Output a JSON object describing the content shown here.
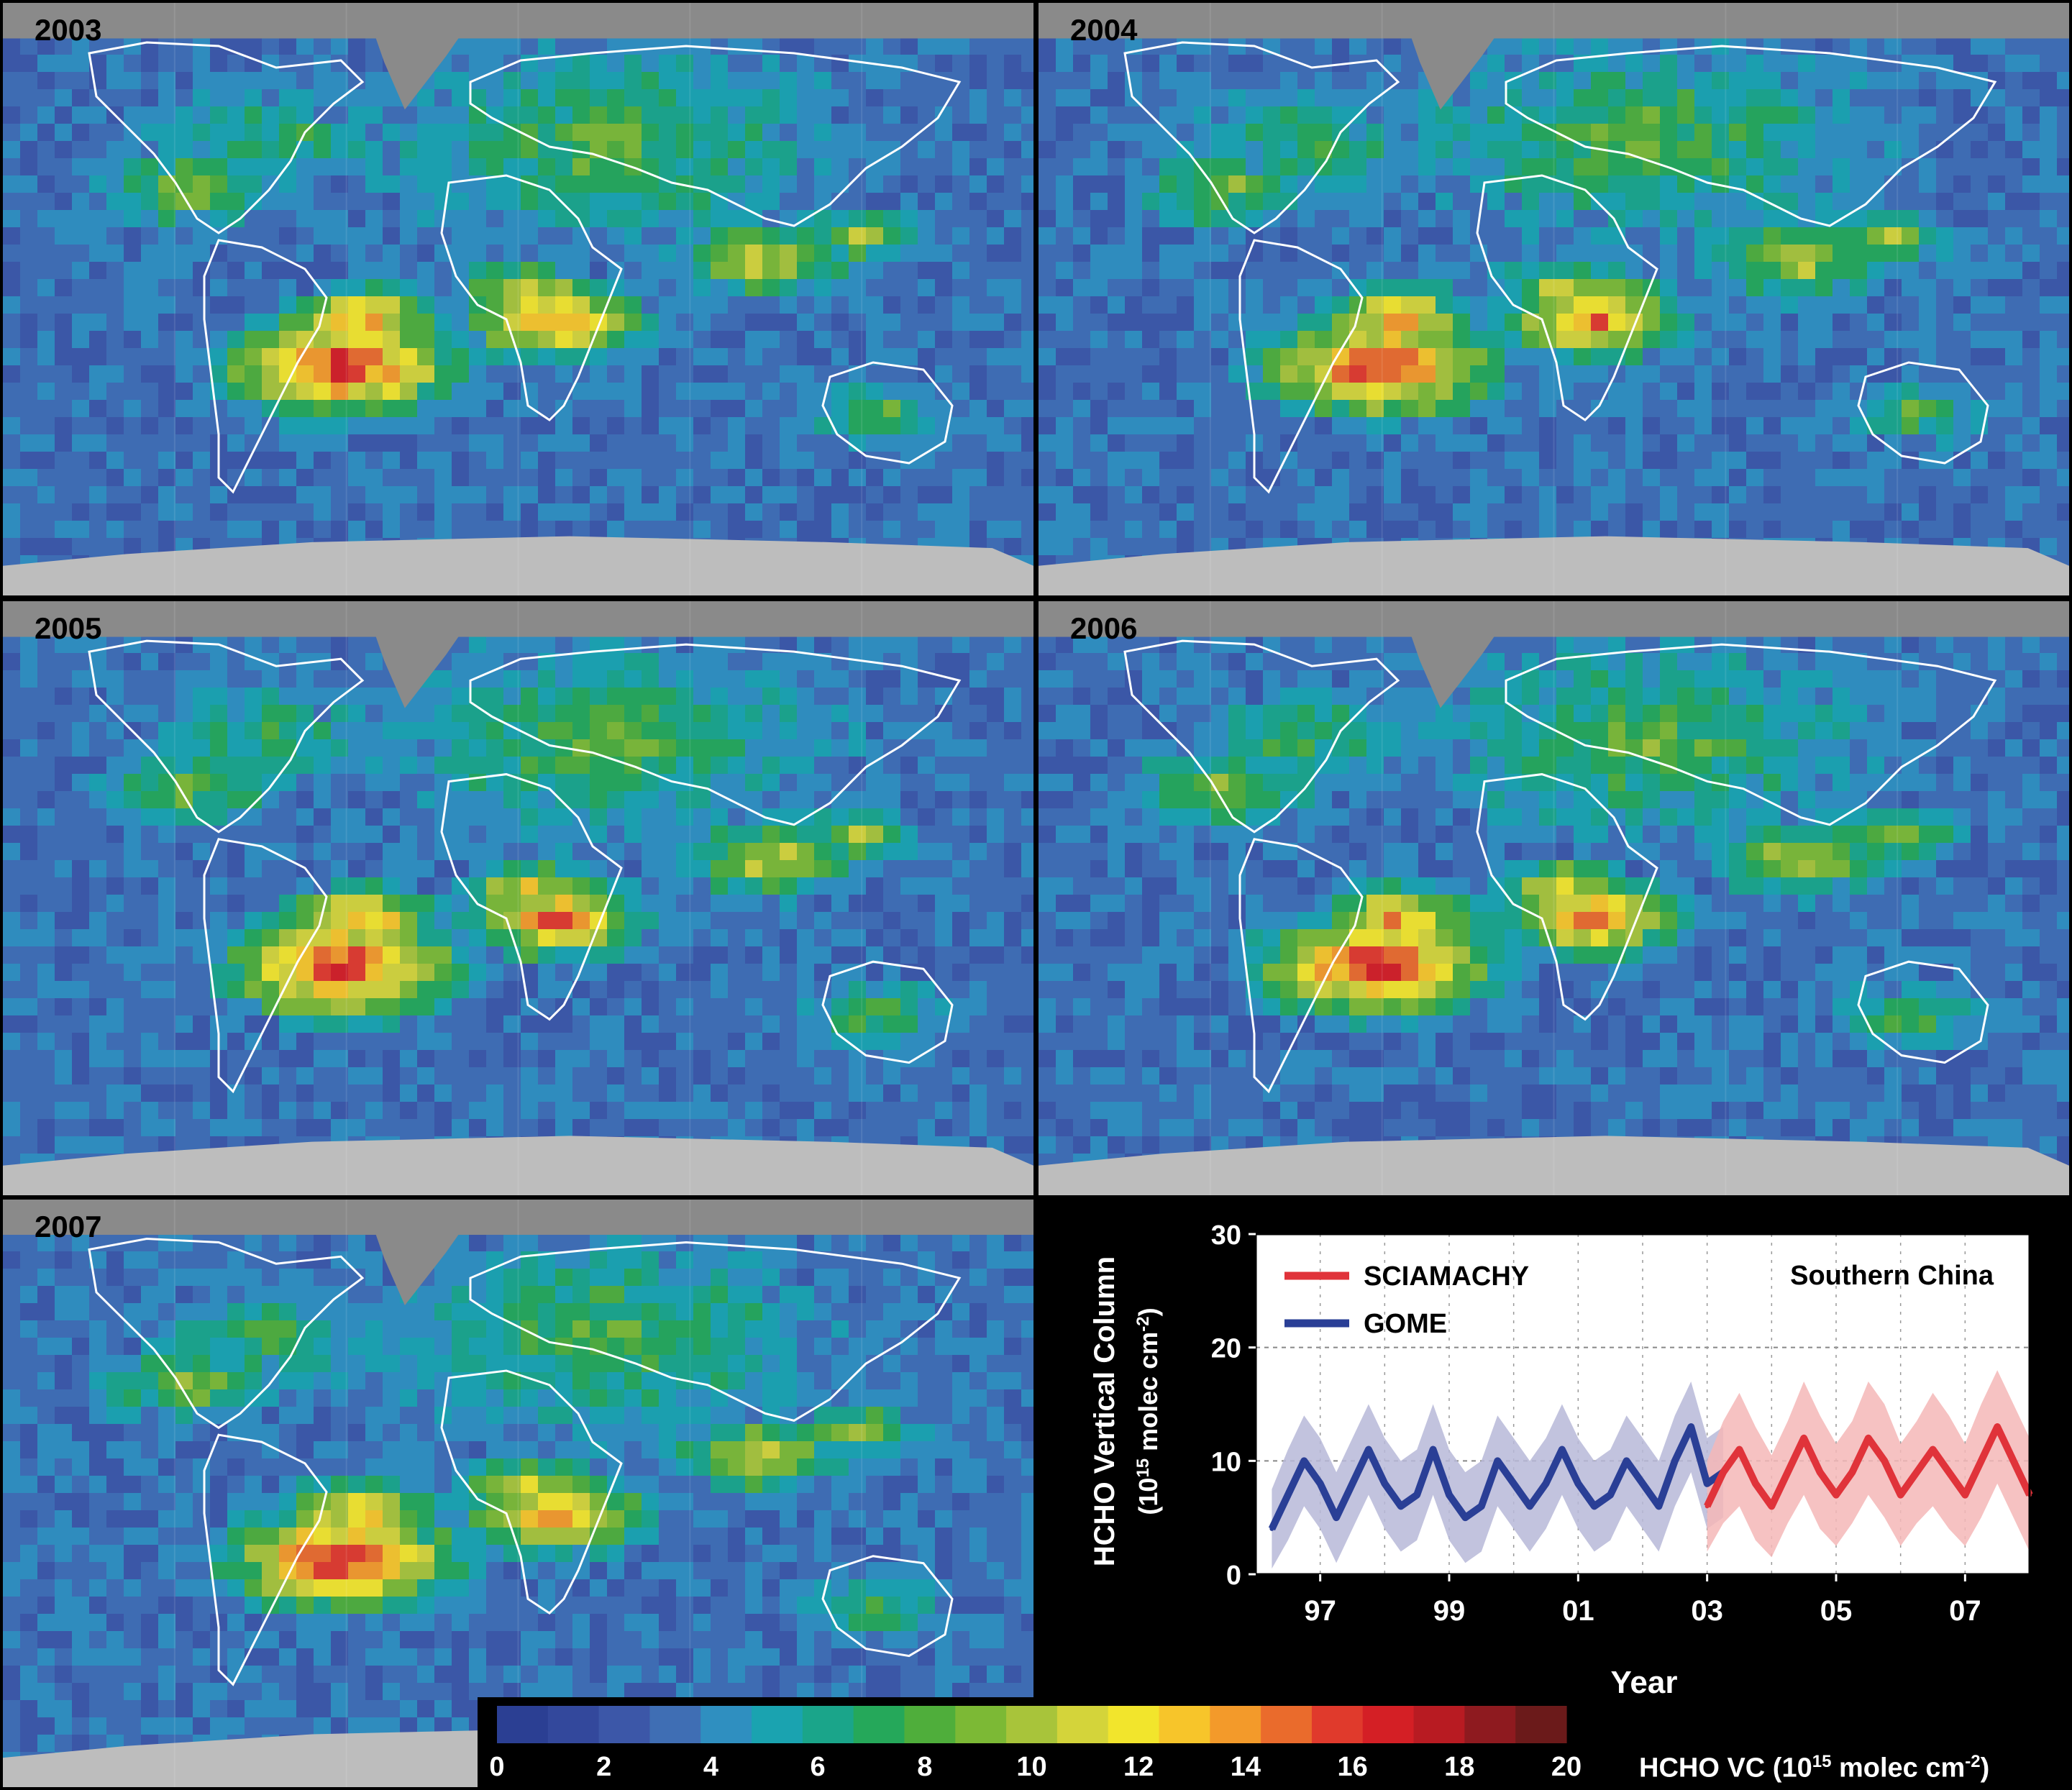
{
  "maps": [
    {
      "year": "2003"
    },
    {
      "year": "2004"
    },
    {
      "year": "2005"
    },
    {
      "year": "2006"
    },
    {
      "year": "2007"
    }
  ],
  "colors": {
    "land_gray": "#8a8a8a",
    "ice_gray": "#bdbdbd",
    "ocean_low": "#2f4f9e",
    "coast": "#ffffff"
  },
  "colorbar": {
    "ticks": [
      "0",
      "2",
      "4",
      "6",
      "8",
      "10",
      "12",
      "14",
      "16",
      "18",
      "20"
    ],
    "label": "HCHO VC (10",
    "label_sup": "15",
    "label_tail": " molec cm",
    "label_sup2": "-2",
    "label_end": ")",
    "stops": [
      "#2b3f93",
      "#33489c",
      "#3c57a8",
      "#3f6eb4",
      "#2f8fc0",
      "#1aa3b0",
      "#1aa58a",
      "#25a85a",
      "#4fae3b",
      "#7cb935",
      "#a8c43a",
      "#d4d43a",
      "#f2e52c",
      "#f7c52a",
      "#f39a2a",
      "#ea6b2c",
      "#e03a2c",
      "#d41f25",
      "#b81b22",
      "#8e1a1f",
      "#6b1a1a"
    ]
  },
  "chart_data": {
    "type": "line",
    "title": "Southern China",
    "xlabel": "Year",
    "ylabel": "HCHO Vertical Column",
    "ylabel2": "(10",
    "ylabel2_sup": "15",
    "ylabel2_tail": " molec cm",
    "ylabel2_sup2": "-2",
    "ylabel2_end": ")",
    "xlim": [
      1996.0,
      2008.0
    ],
    "ylim": [
      0,
      30
    ],
    "x_ticks": [
      {
        "value": 1997,
        "label": "97"
      },
      {
        "value": 1999,
        "label": "99"
      },
      {
        "value": 2001,
        "label": "01"
      },
      {
        "value": 2003,
        "label": "03"
      },
      {
        "value": 2005,
        "label": "05"
      },
      {
        "value": 2007,
        "label": "07"
      }
    ],
    "y_ticks": [
      "0",
      "10",
      "20",
      "30"
    ],
    "grid": true,
    "legend_position": "top-left",
    "series": [
      {
        "name": "GOME",
        "color": "#2a3f96",
        "band_color": "#b7b9d8",
        "x": [
          1996.25,
          1996.5,
          1996.75,
          1997.0,
          1997.25,
          1997.5,
          1997.75,
          1998.0,
          1998.25,
          1998.5,
          1998.75,
          1999.0,
          1999.25,
          1999.5,
          1999.75,
          2000.0,
          2000.25,
          2000.5,
          2000.75,
          2001.0,
          2001.25,
          2001.5,
          2001.75,
          2002.0,
          2002.25,
          2002.5,
          2002.75,
          2003.0,
          2003.25
        ],
        "values": [
          4,
          7,
          10,
          8,
          5,
          8,
          11,
          8,
          6,
          7,
          11,
          7,
          5,
          6,
          10,
          8,
          6,
          8,
          11,
          8,
          6,
          7,
          10,
          8,
          6,
          10,
          13,
          8,
          9
        ],
        "band": [
          3.5,
          4,
          4,
          4,
          4,
          4,
          4,
          4,
          4,
          4,
          4,
          4,
          4,
          4,
          4,
          4,
          4,
          4,
          4,
          4,
          4,
          4,
          4,
          4,
          4,
          4,
          4,
          4,
          4
        ]
      },
      {
        "name": "SCIAMACHY",
        "color": "#e0333a",
        "band_color": "#f4b7b7",
        "x": [
          2003.0,
          2003.25,
          2003.5,
          2003.75,
          2004.0,
          2004.25,
          2004.5,
          2004.75,
          2005.0,
          2005.25,
          2005.5,
          2005.75,
          2006.0,
          2006.25,
          2006.5,
          2006.75,
          2007.0,
          2007.25,
          2007.5,
          2007.75,
          2008.0
        ],
        "values": [
          6,
          9,
          11,
          8,
          6,
          9,
          12,
          9,
          7,
          9,
          12,
          10,
          7,
          9,
          11,
          9,
          7,
          10,
          13,
          10,
          7
        ],
        "band": [
          4,
          4.5,
          5,
          5,
          4.5,
          4.5,
          5,
          5,
          4.5,
          4.5,
          5,
          5,
          4.5,
          4.5,
          5,
          5,
          4.5,
          5,
          5,
          5,
          5
        ]
      }
    ]
  }
}
